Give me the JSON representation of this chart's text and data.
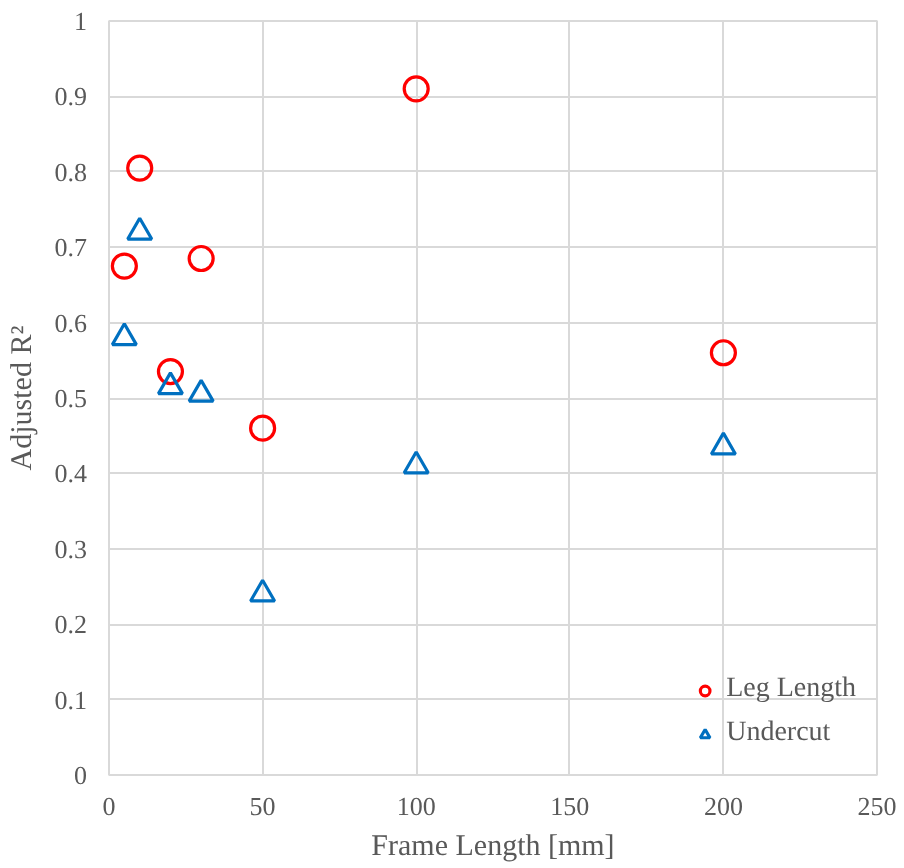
{
  "chart_data": {
    "type": "scatter",
    "xlabel": "Frame Length [mm]",
    "ylabel": "Adjusted R²",
    "x": [
      5,
      10,
      20,
      30,
      50,
      100,
      200
    ],
    "series": [
      {
        "name": "Leg Length",
        "color": "#ff0000",
        "marker": "circle",
        "values": [
          0.675,
          0.805,
          0.535,
          0.685,
          0.46,
          0.91,
          0.56
        ]
      },
      {
        "name": "Undercut",
        "color": "#0070c0",
        "marker": "triangle",
        "values": [
          0.58,
          0.72,
          0.515,
          0.505,
          0.24,
          0.41,
          0.435
        ]
      }
    ],
    "xlim": [
      0,
      250
    ],
    "xticks": [
      0,
      50,
      100,
      150,
      200,
      250
    ],
    "ylim": [
      0,
      1
    ],
    "yticks": [
      0,
      0.1,
      0.2,
      0.3,
      0.4,
      0.5,
      0.6,
      0.7,
      0.8,
      0.9,
      1
    ],
    "grid": true,
    "legend": "bottom right"
  }
}
